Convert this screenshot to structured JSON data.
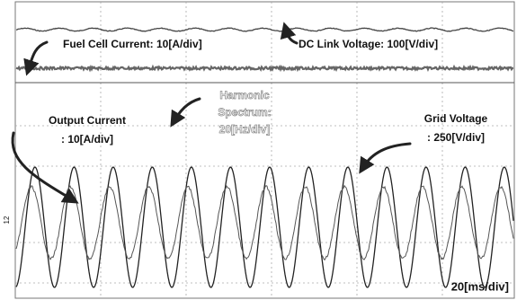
{
  "annotations": {
    "fuel_cell_current": "Fuel Cell Current: 10[A/div]",
    "dc_link_voltage": "DC Link Voltage: 100[V/div]",
    "harmonic_spectrum": [
      "Harmonic",
      "Spectrum:",
      "20[Hz/div]"
    ],
    "output_current": [
      "Output Current",
      ": 10[A/div]"
    ],
    "grid_voltage": [
      "Grid Voltage",
      ": 250[V/div]"
    ],
    "time_scale": "20[ms/div]",
    "channel_marker": "12"
  }
}
